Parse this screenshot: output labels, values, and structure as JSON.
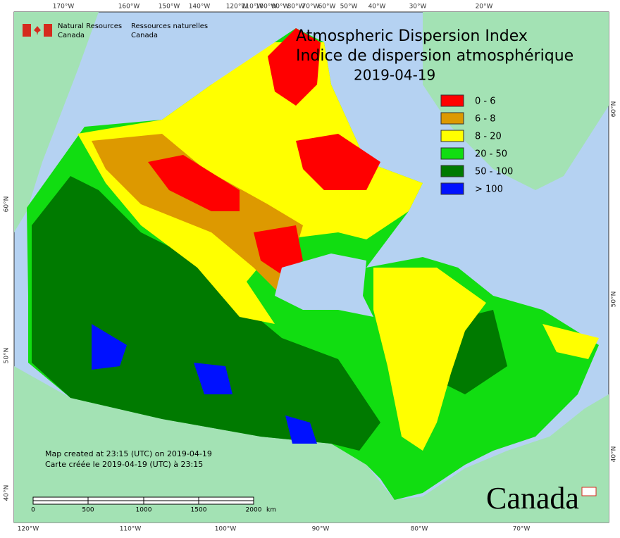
{
  "header": {
    "org_en": "Natural Resources",
    "org_en_2": "Canada",
    "org_fr": "Ressources naturelles",
    "org_fr_2": "Canada"
  },
  "title": {
    "line1": "Atmospheric Dispersion Index",
    "line2": "Indice de dispersion atmosphérique",
    "date": "2019-04-19"
  },
  "legend": [
    {
      "label": "0 - 6",
      "color": "#ff0000"
    },
    {
      "label": "6 - 8",
      "color": "#dd9900"
    },
    {
      "label": "8 - 20",
      "color": "#ffff00"
    },
    {
      "label": "20 - 50",
      "color": "#11dd11"
    },
    {
      "label": "50 - 100",
      "color": "#007a00"
    },
    {
      "label": "> 100",
      "color": "#0011ff"
    }
  ],
  "graticule": {
    "top": [
      "170°W",
      "160°W",
      "150°W",
      "140°W",
      "120°W",
      "110°W",
      "100°W",
      "90°W",
      "80°W",
      "70°W",
      "60°W",
      "50°W",
      "40°W",
      "30°W",
      "20°W"
    ],
    "bottom": [
      "120°W",
      "110°W",
      "100°W",
      "90°W",
      "80°W",
      "70°W"
    ],
    "left": [
      "60°N",
      "50°N",
      "40°N"
    ],
    "right": [
      "60°N",
      "50°N",
      "40°N"
    ]
  },
  "notes": [
    "Map created at 23:15 (UTC) on 2019-04-19",
    "Carte créée le 2019-04-19 (UTC) à 23:15"
  ],
  "scale_bar": {
    "labels": [
      "0",
      "500",
      "1000",
      "1500",
      "2000"
    ],
    "unit": "km"
  },
  "wordmark": "Canada"
}
